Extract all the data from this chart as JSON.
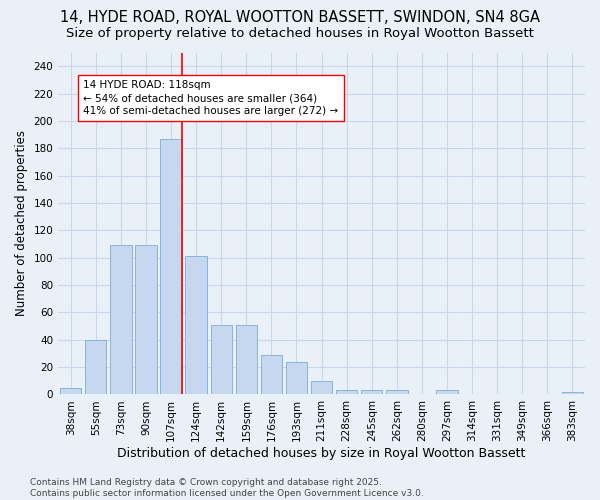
{
  "title": "14, HYDE ROAD, ROYAL WOOTTON BASSETT, SWINDON, SN4 8GA",
  "subtitle": "Size of property relative to detached houses in Royal Wootton Bassett",
  "xlabel": "Distribution of detached houses by size in Royal Wootton Bassett",
  "ylabel": "Number of detached properties",
  "footer_line1": "Contains HM Land Registry data © Crown copyright and database right 2025.",
  "footer_line2": "Contains public sector information licensed under the Open Government Licence v3.0.",
  "categories": [
    "38sqm",
    "55sqm",
    "73sqm",
    "90sqm",
    "107sqm",
    "124sqm",
    "142sqm",
    "159sqm",
    "176sqm",
    "193sqm",
    "211sqm",
    "228sqm",
    "245sqm",
    "262sqm",
    "280sqm",
    "297sqm",
    "314sqm",
    "331sqm",
    "349sqm",
    "366sqm",
    "383sqm"
  ],
  "values": [
    5,
    40,
    109,
    109,
    187,
    101,
    51,
    51,
    29,
    24,
    10,
    3,
    3,
    3,
    0,
    3,
    0,
    0,
    0,
    0,
    2
  ],
  "bar_color": "#c5d8f0",
  "bar_edge_color": "#7bafd4",
  "grid_color": "#c8d8e8",
  "background_color": "#eaf0f8",
  "annotation_text": "14 HYDE ROAD: 118sqm\n← 54% of detached houses are smaller (364)\n41% of semi-detached houses are larger (272) →",
  "vline_x_index": 4,
  "ylim": [
    0,
    250
  ],
  "yticks": [
    0,
    20,
    40,
    60,
    80,
    100,
    120,
    140,
    160,
    180,
    200,
    220,
    240
  ],
  "title_fontsize": 10.5,
  "subtitle_fontsize": 9.5,
  "xlabel_fontsize": 9,
  "ylabel_fontsize": 8.5,
  "tick_fontsize": 7.5,
  "annotation_fontsize": 7.5,
  "footer_fontsize": 6.5
}
